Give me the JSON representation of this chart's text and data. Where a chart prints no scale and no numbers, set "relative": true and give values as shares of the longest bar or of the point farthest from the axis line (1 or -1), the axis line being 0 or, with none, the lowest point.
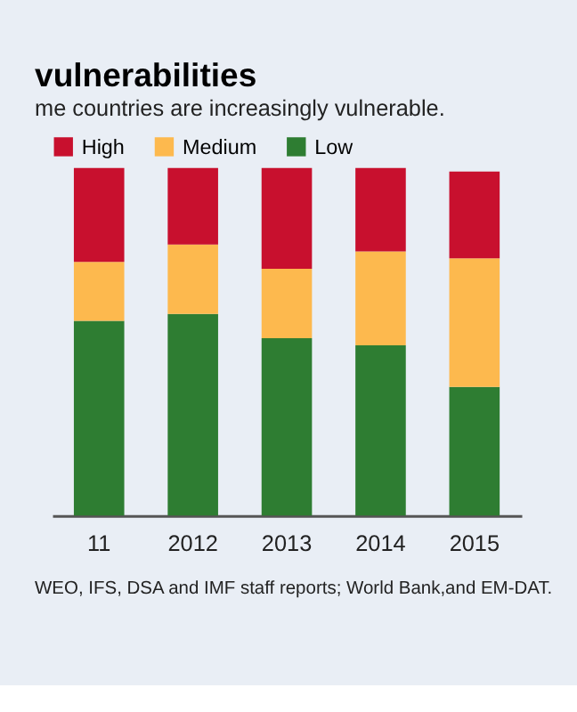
{
  "chart_data": {
    "type": "bar",
    "title": "vulnerabilities",
    "subtitle": "me countries are increasingly vulnerable.",
    "categories": [
      "11",
      "2012",
      "2013",
      "2014",
      "2015"
    ],
    "stacked": true,
    "relative": true,
    "legend": "top left",
    "series": [
      {
        "name": "Low",
        "color": "#2e7d32",
        "values": [
          0.56,
          0.58,
          0.51,
          0.49,
          0.37
        ]
      },
      {
        "name": "Medium",
        "color": "#fdb94e",
        "values": [
          0.17,
          0.2,
          0.2,
          0.27,
          0.37
        ]
      },
      {
        "name": "High",
        "color": "#c8102e",
        "values": [
          0.27,
          0.22,
          0.29,
          0.24,
          0.25
        ]
      }
    ],
    "annotations": [
      "WEO, IFS, DSA and IMF staff reports; World Bank,and  EM-DAT."
    ]
  }
}
